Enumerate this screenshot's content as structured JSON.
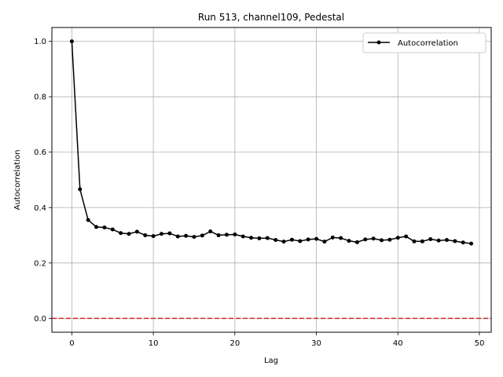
{
  "chart_data": {
    "type": "line",
    "title": "Run 513, channel109, Pedestal",
    "xlabel": "Lag",
    "ylabel": "Autocorrelation",
    "xlim": [
      -2.45,
      51.45
    ],
    "ylim": [
      -0.05,
      1.05
    ],
    "xticks": [
      0,
      10,
      20,
      30,
      40,
      50
    ],
    "xtick_labels": [
      "0",
      "10",
      "20",
      "30",
      "40",
      "50"
    ],
    "yticks": [
      0.0,
      0.2,
      0.4,
      0.6,
      0.8,
      1.0
    ],
    "ytick_labels": [
      "0.0",
      "0.2",
      "0.4",
      "0.6",
      "0.8",
      "1.0"
    ],
    "grid": true,
    "legend_position": "top-right",
    "reference_line": {
      "y": 0.0,
      "color": "#d62728",
      "style": "dashed"
    },
    "series": [
      {
        "name": "Autocorrelation",
        "color": "#000000",
        "marker": "circle",
        "x": [
          0,
          1,
          2,
          3,
          4,
          5,
          6,
          7,
          8,
          9,
          10,
          11,
          12,
          13,
          14,
          15,
          16,
          17,
          18,
          19,
          20,
          21,
          22,
          23,
          24,
          25,
          26,
          27,
          28,
          29,
          30,
          31,
          32,
          33,
          34,
          35,
          36,
          37,
          38,
          39,
          40,
          41,
          42,
          43,
          44,
          45,
          46,
          47,
          48,
          49
        ],
        "y": [
          1.0,
          0.466,
          0.355,
          0.33,
          0.328,
          0.321,
          0.308,
          0.305,
          0.313,
          0.3,
          0.297,
          0.305,
          0.307,
          0.296,
          0.298,
          0.294,
          0.299,
          0.314,
          0.3,
          0.302,
          0.303,
          0.296,
          0.291,
          0.289,
          0.29,
          0.283,
          0.277,
          0.284,
          0.279,
          0.285,
          0.287,
          0.277,
          0.292,
          0.29,
          0.28,
          0.275,
          0.285,
          0.288,
          0.282,
          0.284,
          0.291,
          0.296,
          0.278,
          0.278,
          0.286,
          0.281,
          0.283,
          0.279,
          0.274,
          0.27
        ]
      }
    ]
  }
}
